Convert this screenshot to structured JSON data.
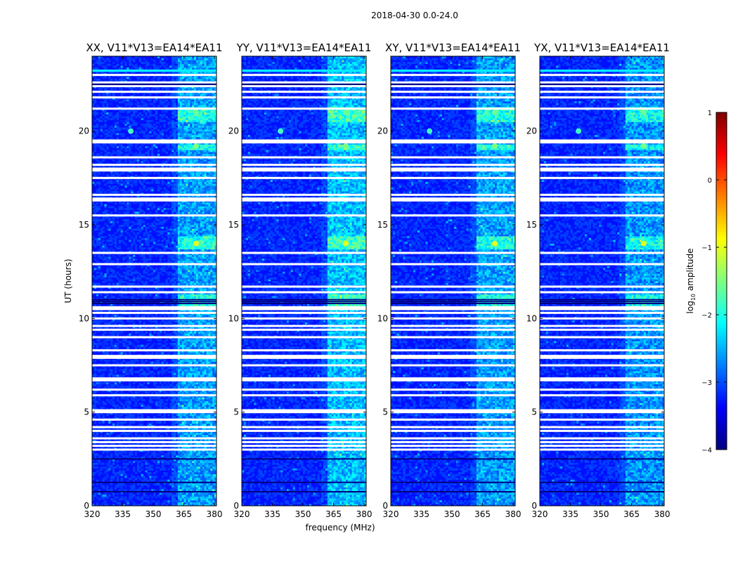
{
  "figure_title": "2018-04-30 0.0-24.0",
  "chart_data": {
    "type": "heatmap",
    "suptitle": "2018-04-30 0.0-24.0",
    "xlabel": "frequency (MHz)",
    "ylabel": "UT (hours)",
    "xlim": [
      320,
      381
    ],
    "ylim": [
      0,
      24
    ],
    "xticks": [
      320,
      335,
      350,
      365,
      380
    ],
    "yticks": [
      0,
      5,
      10,
      15,
      20
    ],
    "panels": [
      {
        "title": "XX, V11*V13=EA14*EA11"
      },
      {
        "title": "YY, V11*V13=EA14*EA11"
      },
      {
        "title": "XY, V11*V13=EA14*EA11"
      },
      {
        "title": "YX, V11*V13=EA14*EA11"
      }
    ],
    "colorbar": {
      "label": "log10 amplitude",
      "label_main": "log",
      "label_sub": "10",
      "label_rest": " amplitude",
      "range": [
        -4,
        1
      ],
      "ticks": [
        "1",
        "0",
        "−1",
        "−2",
        "−3",
        "−4"
      ],
      "tick_values": [
        1,
        0,
        -1,
        -2,
        -3,
        -4
      ],
      "colormap": [
        "#00007f",
        "#0000ff",
        "#007fff",
        "#00ffff",
        "#7fff7f",
        "#ffff00",
        "#ff7f00",
        "#ff0000",
        "#7f0000"
      ]
    },
    "rfi_bands_mhz": [
      [
        362.5,
        366.5
      ],
      [
        367.5,
        371.5
      ],
      [
        372.5,
        376.5
      ],
      [
        377.5,
        380.5
      ]
    ],
    "flagged_ut_hours": [
      3.0,
      3.2,
      3.4,
      3.6,
      4.0,
      4.2,
      4.6,
      5.0,
      5.1,
      5.9,
      6.2,
      6.7,
      6.8,
      7.5,
      7.9,
      8.0,
      8.3,
      9.0,
      9.4,
      9.6,
      10.0,
      10.3,
      10.5,
      10.6,
      11.4,
      11.7,
      12.9,
      13.5,
      15.5,
      16.3,
      16.4,
      16.6,
      17.5,
      17.9,
      18.0,
      18.2,
      18.6,
      19.4,
      19.5,
      21.2,
      21.8,
      22.1,
      22.4,
      22.6,
      23.0
    ],
    "dark_ut_hours": [
      0.75,
      1.25,
      2.5,
      10.8,
      10.9,
      11.0,
      22.5
    ],
    "bright_ut_hours": [
      23.2,
      23.25
    ],
    "bright_events": [
      {
        "ut": 20.0,
        "freq": 339,
        "level": -1.8
      },
      {
        "ut": 14.0,
        "freq": 371,
        "level": -1.0
      },
      {
        "ut": 21.0,
        "freq": 371,
        "level": -1.6
      },
      {
        "ut": 19.2,
        "freq": 371,
        "level": -1.5
      },
      {
        "ut": 10.8,
        "freq": 371,
        "level": -1.7
      }
    ]
  }
}
